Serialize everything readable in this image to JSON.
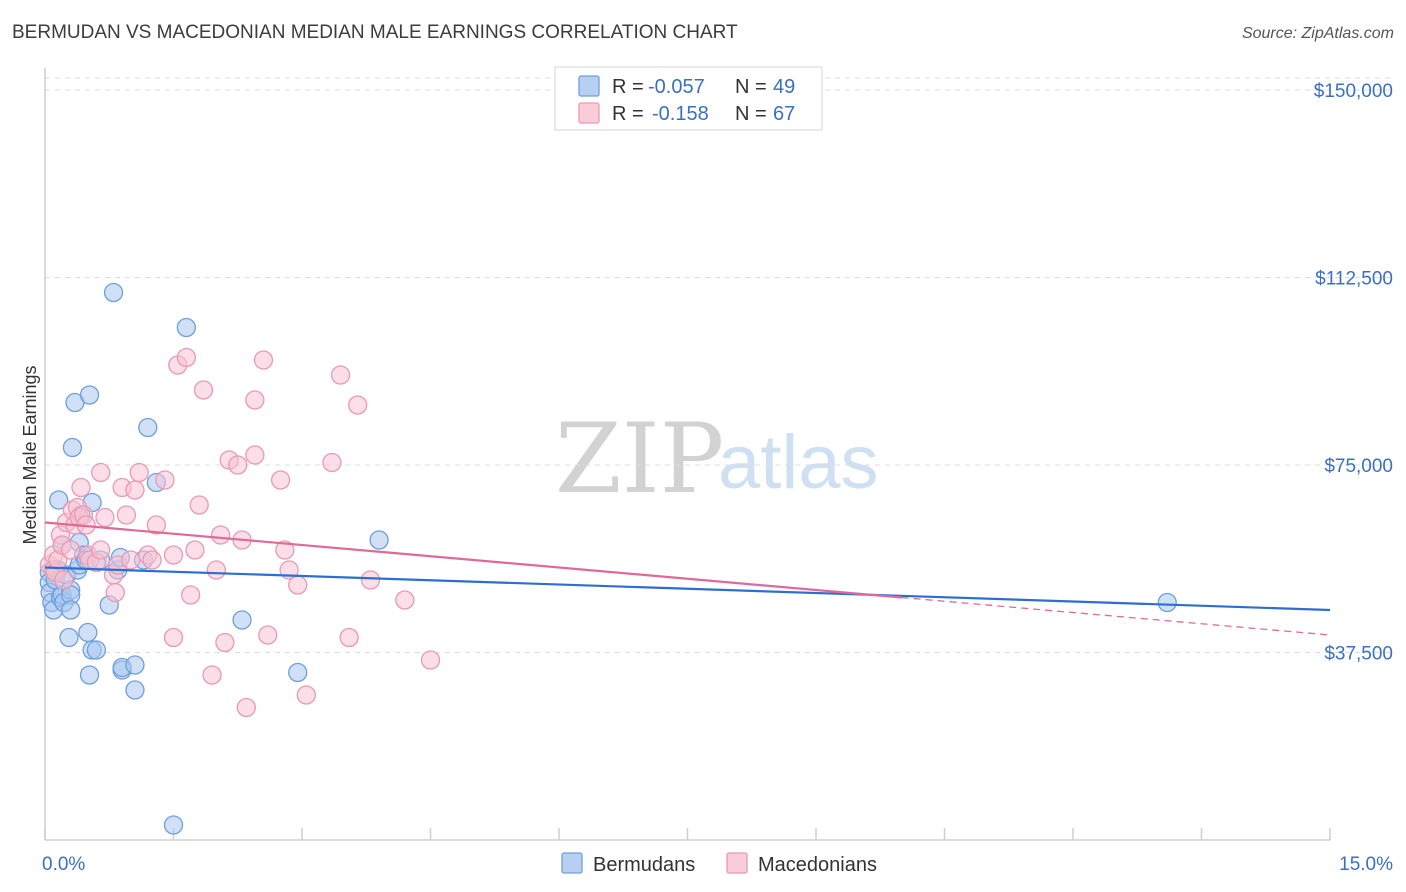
{
  "header": {
    "title": "BERMUDAN VS MACEDONIAN MEDIAN MALE EARNINGS CORRELATION CHART",
    "source": "Source: ZipAtlas.com"
  },
  "watermark": {
    "zip": "ZIP",
    "atlas": "atlas"
  },
  "colors": {
    "blue_fill": "#aac8f0",
    "blue_stroke": "#6f9fdc",
    "blue_line": "#2c6fd0",
    "pink_fill": "#f8c3d4",
    "pink_stroke": "#e89ab4",
    "pink_line": "#e06a97",
    "tick_text": "#3a6fc4",
    "grid": "#dddddd"
  },
  "legend": {
    "rows": [
      {
        "r_label": "R =",
        "r_value": "-0.057",
        "n_label": "N =",
        "n_value": "49"
      },
      {
        "r_label": "R =",
        "r_value": "-0.158",
        "n_label": "N =",
        "n_value": "67"
      }
    ]
  },
  "chart_data": {
    "type": "scatter",
    "title": "BERMUDAN VS MACEDONIAN MEDIAN MALE EARNINGS CORRELATION CHART",
    "xlabel": "",
    "ylabel": "Median Male Earnings",
    "xlim": [
      0,
      15
    ],
    "ylim": [
      0,
      156000
    ],
    "x_tick_labels": [
      "0.0%",
      "15.0%"
    ],
    "y_ticks": [
      37500,
      75000,
      112500,
      150000
    ],
    "y_tick_labels": [
      "$37,500",
      "$75,000",
      "$112,500",
      "$150,000"
    ],
    "series": [
      {
        "name": "Bermudans",
        "r": -0.057,
        "n": 49,
        "trend": {
          "x": [
            0,
            15
          ],
          "y": [
            54500,
            46000
          ]
        },
        "points": [
          [
            0.05,
            53500
          ],
          [
            0.05,
            51500
          ],
          [
            0.06,
            49500
          ],
          [
            0.08,
            47500
          ],
          [
            0.1,
            46000
          ],
          [
            0.12,
            52000
          ],
          [
            0.15,
            54000
          ],
          [
            0.16,
            68000
          ],
          [
            0.18,
            48500
          ],
          [
            0.2,
            49000
          ],
          [
            0.2,
            59000
          ],
          [
            0.22,
            47500
          ],
          [
            0.25,
            53000
          ],
          [
            0.28,
            40500
          ],
          [
            0.3,
            50000
          ],
          [
            0.3,
            49000
          ],
          [
            0.3,
            46000
          ],
          [
            0.32,
            78500
          ],
          [
            0.35,
            87500
          ],
          [
            0.38,
            54000
          ],
          [
            0.4,
            55000
          ],
          [
            0.4,
            59500
          ],
          [
            0.42,
            65000
          ],
          [
            0.45,
            57000
          ],
          [
            0.48,
            56000
          ],
          [
            0.5,
            41500
          ],
          [
            0.52,
            89000
          ],
          [
            0.52,
            33000
          ],
          [
            0.55,
            38000
          ],
          [
            0.55,
            67500
          ],
          [
            0.6,
            38000
          ],
          [
            0.65,
            56000
          ],
          [
            0.75,
            47000
          ],
          [
            0.8,
            109500
          ],
          [
            0.85,
            54000
          ],
          [
            0.88,
            56500
          ],
          [
            0.9,
            34000
          ],
          [
            0.9,
            34500
          ],
          [
            1.05,
            35000
          ],
          [
            1.05,
            30000
          ],
          [
            1.15,
            56000
          ],
          [
            1.2,
            82500
          ],
          [
            1.3,
            71500
          ],
          [
            1.5,
            3000
          ],
          [
            1.65,
            102500
          ],
          [
            2.3,
            44000
          ],
          [
            2.95,
            33500
          ],
          [
            3.9,
            60000
          ],
          [
            13.1,
            47500
          ]
        ]
      },
      {
        "name": "Macedonians",
        "r": -0.158,
        "n": 67,
        "trend": {
          "x": [
            0,
            10
          ],
          "y": [
            63500,
            48500
          ]
        },
        "trend_dashed": {
          "x": [
            10,
            15
          ],
          "y": [
            48500,
            41000
          ]
        },
        "points": [
          [
            0.05,
            55000
          ],
          [
            0.1,
            57000
          ],
          [
            0.1,
            54000
          ],
          [
            0.12,
            53500
          ],
          [
            0.15,
            56000
          ],
          [
            0.18,
            61000
          ],
          [
            0.2,
            59000
          ],
          [
            0.22,
            52000
          ],
          [
            0.25,
            63500
          ],
          [
            0.3,
            58000
          ],
          [
            0.32,
            66000
          ],
          [
            0.35,
            63000
          ],
          [
            0.38,
            66500
          ],
          [
            0.4,
            64500
          ],
          [
            0.42,
            70500
          ],
          [
            0.45,
            65000
          ],
          [
            0.48,
            63000
          ],
          [
            0.5,
            57000
          ],
          [
            0.52,
            56000
          ],
          [
            0.6,
            55500
          ],
          [
            0.65,
            58000
          ],
          [
            0.65,
            73500
          ],
          [
            0.7,
            64500
          ],
          [
            0.8,
            53000
          ],
          [
            0.82,
            49500
          ],
          [
            0.85,
            55000
          ],
          [
            0.9,
            70500
          ],
          [
            0.95,
            65000
          ],
          [
            1.0,
            56000
          ],
          [
            1.05,
            70000
          ],
          [
            1.1,
            73500
          ],
          [
            1.2,
            57000
          ],
          [
            1.25,
            56000
          ],
          [
            1.3,
            63000
          ],
          [
            1.4,
            72000
          ],
          [
            1.5,
            40500
          ],
          [
            1.5,
            57000
          ],
          [
            1.55,
            95000
          ],
          [
            1.65,
            96500
          ],
          [
            1.7,
            49000
          ],
          [
            1.75,
            58000
          ],
          [
            1.8,
            67000
          ],
          [
            1.85,
            90000
          ],
          [
            1.95,
            33000
          ],
          [
            2.0,
            54000
          ],
          [
            2.05,
            61000
          ],
          [
            2.1,
            39500
          ],
          [
            2.15,
            76000
          ],
          [
            2.25,
            75000
          ],
          [
            2.3,
            60000
          ],
          [
            2.35,
            26500
          ],
          [
            2.45,
            88000
          ],
          [
            2.45,
            77000
          ],
          [
            2.55,
            96000
          ],
          [
            2.6,
            41000
          ],
          [
            2.75,
            72000
          ],
          [
            2.8,
            58000
          ],
          [
            2.85,
            54000
          ],
          [
            2.95,
            51000
          ],
          [
            3.05,
            29000
          ],
          [
            3.35,
            75500
          ],
          [
            3.45,
            93000
          ],
          [
            3.55,
            40500
          ],
          [
            3.65,
            87000
          ],
          [
            3.8,
            52000
          ],
          [
            4.2,
            48000
          ],
          [
            4.5,
            36000
          ]
        ]
      }
    ]
  }
}
